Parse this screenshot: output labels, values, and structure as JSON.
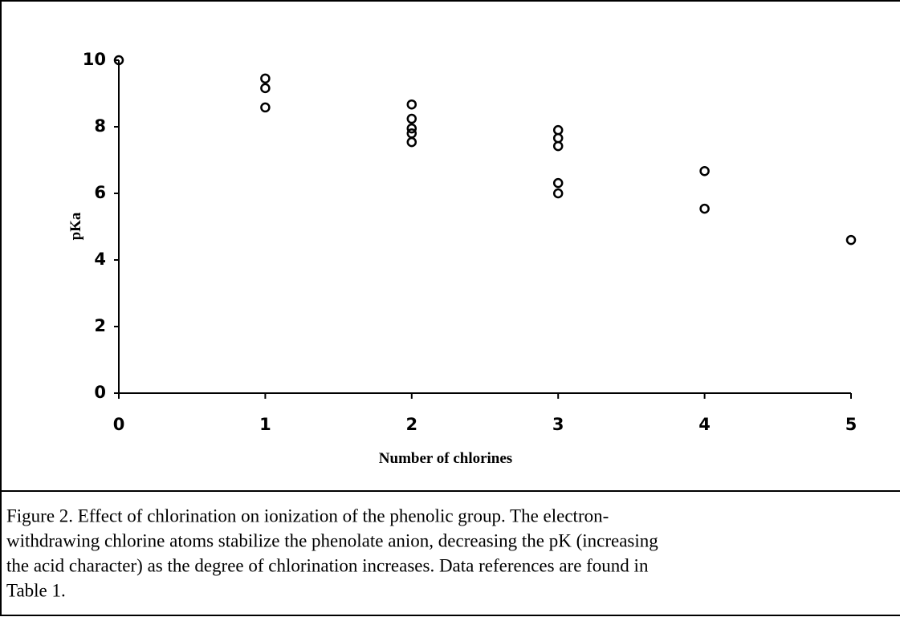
{
  "chart_data": {
    "type": "scatter",
    "xlabel": "Number of chlorines",
    "ylabel": "pKa",
    "x": [
      0,
      1,
      1,
      1,
      2,
      2,
      2,
      2,
      2,
      3,
      3,
      3,
      3,
      3,
      4,
      4,
      5
    ],
    "y": [
      10,
      9.45,
      9.16,
      8.58,
      8.67,
      8.24,
      7.95,
      7.8,
      7.54,
      7.9,
      7.66,
      7.42,
      6.31,
      6.0,
      6.67,
      5.54,
      4.6
    ],
    "color": "#000000",
    "xlim": [
      0,
      5
    ],
    "xticks": [
      0,
      1,
      2,
      3,
      4,
      5
    ],
    "ylim": [
      0,
      10
    ],
    "yticks": [
      0,
      2,
      4,
      6,
      8,
      10
    ],
    "caption": [
      "Figure 2.  Effect of chlorination on ionization of the phenolic group.  The electron-",
      "withdrawing chlorine atoms stabilize the phenolate anion, decreasing the pK (increasing",
      "the acid character) as the degree of chlorination increases.  Data references are found in",
      "Table 1."
    ]
  }
}
